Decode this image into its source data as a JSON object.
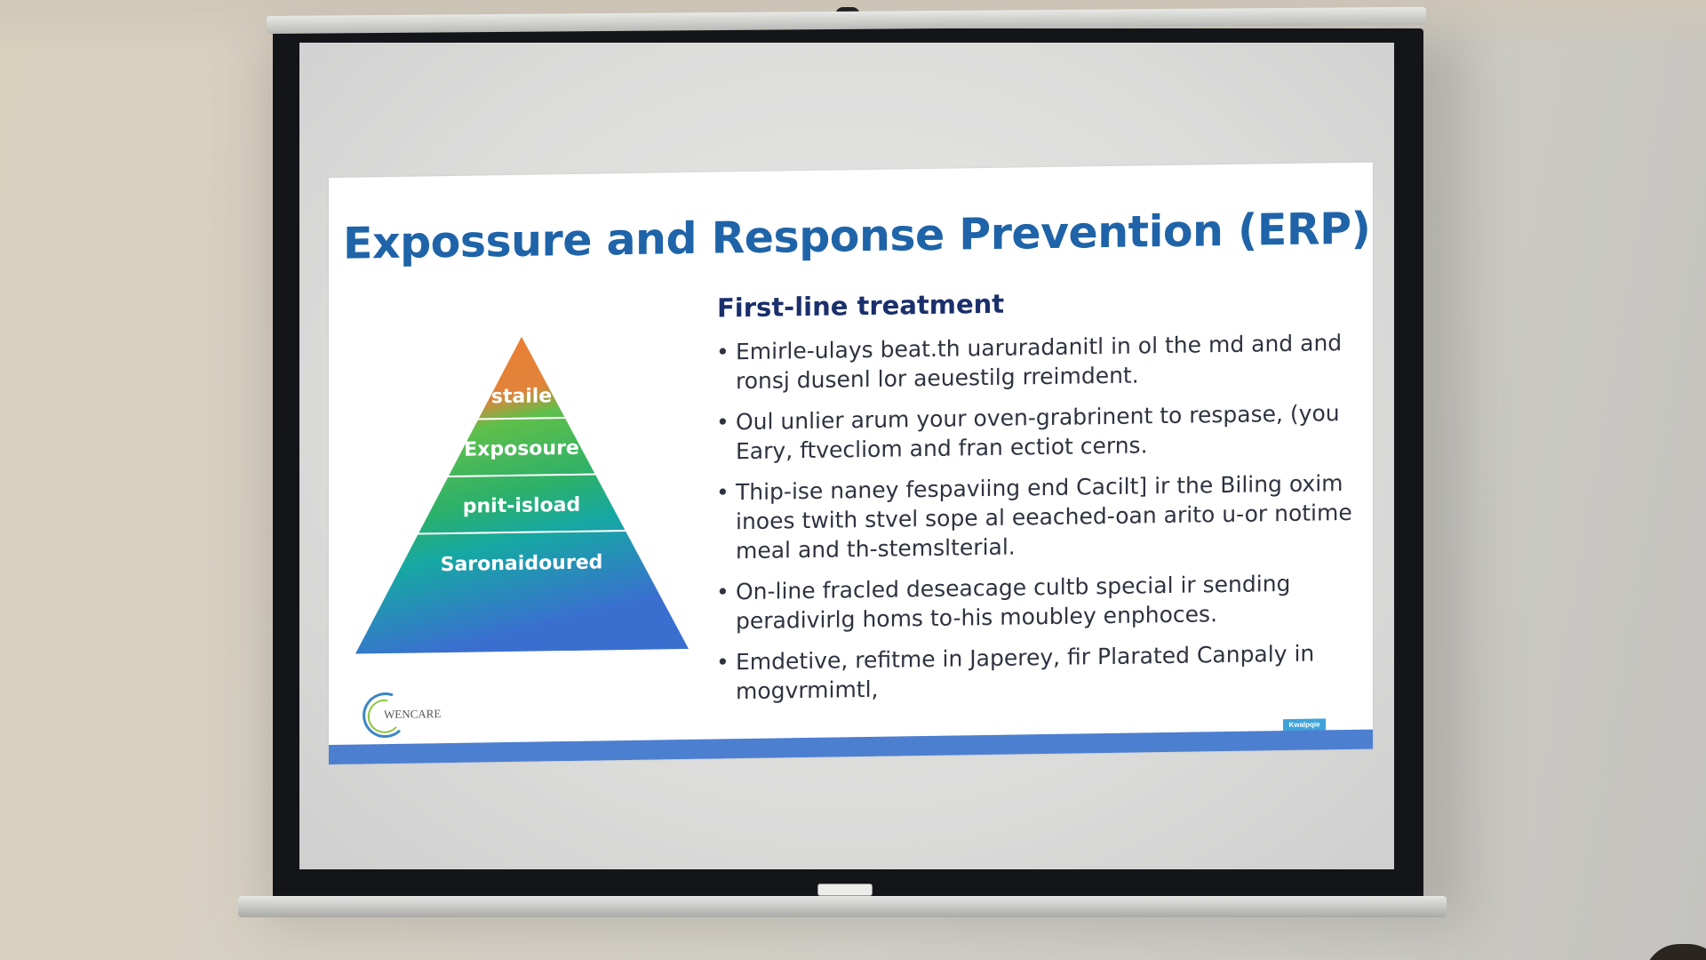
{
  "slide": {
    "title": "Expossure and Response Prevention (ERP)",
    "subheading": "First-line treatment",
    "bullets": [
      "Emirle-ulays beat.th uaruradanitl in ol the md and and ronsj dusenl lor aeuestilg rreimdent.",
      "Oul unlier arum your oven-grabrinent to respase, (you Eary, ftvecliom and fran ectiot cerns.",
      "Thip-ise naney fespaviing end Cacilt] ir the Biling oxim inoes twith stvel sope al eeached-oan arito u-or notime meal and th-stemslterial.",
      "On-line fracled deseacage cultb special ir sending peradivirlg homs to-his moubley enphoces.",
      "Emdetive, refitme in Japerey, fir Plarated Canpaly in mogvrmimtl,"
    ],
    "pyramid": {
      "levels": [
        {
          "label": "staile",
          "color": "#e06e34"
        },
        {
          "label": "Exposoure",
          "color": "#58b94a"
        },
        {
          "label": "pnit-isload",
          "color": "#20a79b"
        },
        {
          "label": "Saronaidoured",
          "color": "#2f7ccf"
        }
      ]
    },
    "logo_text": "WENCARE",
    "footer_tag": "Kwalpqie",
    "colors": {
      "title": "#1f63a8",
      "subheading": "#1a2f6b",
      "footer_bar": "#4d7fd0"
    }
  }
}
